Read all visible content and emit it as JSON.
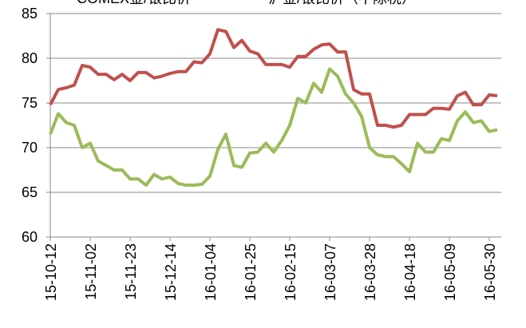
{
  "chart_data": {
    "type": "line",
    "categories": [
      "15-10-12",
      null,
      null,
      null,
      null,
      "15-11-02",
      null,
      null,
      null,
      null,
      "15-11-23",
      null,
      null,
      null,
      null,
      "15-12-14",
      null,
      null,
      null,
      null,
      "16-01-04",
      null,
      null,
      null,
      null,
      "16-01-25",
      null,
      null,
      null,
      null,
      "16-02-15",
      null,
      null,
      null,
      null,
      "16-03-07",
      null,
      null,
      null,
      null,
      "16-03-28",
      null,
      null,
      null,
      null,
      "16-04-18",
      null,
      null,
      null,
      null,
      "16-05-09",
      null,
      null,
      null,
      null,
      "16-05-30",
      null
    ],
    "series": [
      {
        "name": "COMEX金/银比价",
        "color": "#c0504d",
        "values": [
          74.8,
          76.5,
          76.7,
          77.0,
          79.2,
          79.0,
          78.2,
          78.2,
          77.6,
          78.2,
          77.5,
          78.4,
          78.4,
          77.8,
          78.0,
          78.3,
          78.5,
          78.5,
          79.6,
          79.5,
          80.5,
          83.2,
          83.0,
          81.2,
          82.0,
          80.8,
          80.5,
          79.3,
          79.3,
          79.3,
          79.0,
          80.2,
          80.2,
          81.0,
          81.5,
          81.6,
          80.7,
          80.7,
          76.5,
          76.0,
          76.0,
          72.5,
          72.5,
          72.3,
          72.5,
          73.7,
          73.7,
          73.7,
          74.4,
          74.4,
          74.3,
          75.8,
          76.2,
          74.8,
          74.8,
          75.9,
          75.8
        ]
      },
      {
        "name": "沪金/银比价（不除税）",
        "color": "#9bbb59",
        "values": [
          71.5,
          73.8,
          72.8,
          72.5,
          70.0,
          70.5,
          68.5,
          68.0,
          67.5,
          67.5,
          66.5,
          66.5,
          65.8,
          67.0,
          66.5,
          66.7,
          66.0,
          65.8,
          65.8,
          65.9,
          66.8,
          69.8,
          71.5,
          68.0,
          67.8,
          69.4,
          69.5,
          70.5,
          69.5,
          70.8,
          72.5,
          75.5,
          75.0,
          77.2,
          76.2,
          78.8,
          78.0,
          76.0,
          75.0,
          73.5,
          70.0,
          69.2,
          69.0,
          69.0,
          68.2,
          67.3,
          70.5,
          69.5,
          69.5,
          71.0,
          70.8,
          73.0,
          74.0,
          72.8,
          73.0,
          71.8,
          72.0
        ]
      }
    ],
    "ylim": [
      60,
      85
    ],
    "yticks": [
      60,
      65,
      70,
      75,
      80,
      85
    ],
    "grid": true,
    "legend": "top"
  }
}
